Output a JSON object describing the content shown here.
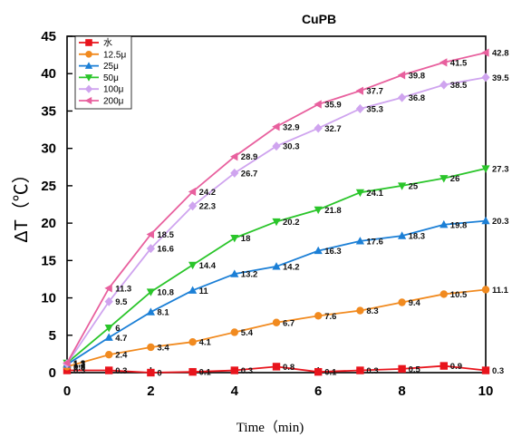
{
  "chart_data": {
    "type": "line",
    "title": "CuPB",
    "xlabel": "Time（min)",
    "ylabel": "ΔT（℃）",
    "xlim": [
      0,
      10
    ],
    "ylim": [
      0,
      45
    ],
    "xticks": [
      "0",
      "2",
      "4",
      "6",
      "8",
      "10"
    ],
    "yticks": [
      "0",
      "5",
      "10",
      "15",
      "20",
      "25",
      "30",
      "35",
      "40",
      "45"
    ],
    "x": [
      0,
      1,
      2,
      3,
      4,
      5,
      6,
      7,
      8,
      9,
      10
    ],
    "legend_position": "top-left",
    "series": [
      {
        "name": "水",
        "color": "#e8141c",
        "marker": "square",
        "values": [
          0.3,
          0.3,
          0,
          0.1,
          0.3,
          0.8,
          0.1,
          0.3,
          0.5,
          0.9,
          0.3
        ],
        "labels": [
          "0.3",
          "0.3",
          "0",
          "0.1",
          "0.3",
          "0.8",
          "0.1",
          "0.3",
          "0.5",
          "0.9",
          "0.3"
        ]
      },
      {
        "name": "12.5μ",
        "color": "#f18a1f",
        "marker": "circle",
        "values": [
          0.8,
          2.4,
          3.4,
          4.1,
          5.4,
          6.7,
          7.6,
          8.3,
          9.4,
          10.5,
          11.1
        ],
        "labels": [
          "0.8",
          "2.4",
          "3.4",
          "4.1",
          "5.4",
          "6.7",
          "7.6",
          "8.3",
          "9.4",
          "10.5",
          "11.1"
        ]
      },
      {
        "name": "25μ",
        "color": "#1b7fd6",
        "marker": "triangle-up",
        "values": [
          1.1,
          4.7,
          8.1,
          11,
          13.2,
          14.2,
          16.3,
          17.6,
          18.3,
          19.8,
          20.3
        ],
        "labels": [
          "1.1",
          "4.7",
          "8.1",
          "11",
          "13.2",
          "14.2",
          "16.3",
          "17.6",
          "18.3",
          "19.8",
          "20.3"
        ]
      },
      {
        "name": "50μ",
        "color": "#2ac52a",
        "marker": "triangle-down",
        "values": [
          1.3,
          6,
          10.8,
          14.4,
          18,
          20.2,
          21.8,
          24.1,
          25,
          26,
          27.3
        ],
        "labels": [
          "1.3",
          "6",
          "10.8",
          "14.4",
          "18",
          "20.2",
          "21.8",
          "24.1",
          "25",
          "26",
          "27.3"
        ]
      },
      {
        "name": "100μ",
        "color": "#cfa4ef",
        "marker": "diamond",
        "values": [
          1.2,
          9.5,
          16.6,
          22.3,
          26.7,
          30.3,
          32.7,
          35.3,
          36.8,
          38.5,
          39.5
        ],
        "labels": [
          "1.2",
          "9.5",
          "16.6",
          "22.3",
          "26.7",
          "30.3",
          "32.7",
          "35.3",
          "36.8",
          "38.5",
          "39.5"
        ]
      },
      {
        "name": "200μ",
        "color": "#e8609e",
        "marker": "triangle-left",
        "values": [
          1.3,
          11.3,
          18.5,
          24.2,
          28.9,
          32.9,
          35.9,
          37.7,
          39.8,
          41.5,
          42.8
        ],
        "labels": [
          "1.3",
          "11.3",
          "18.5",
          "24.2",
          "28.9",
          "32.9",
          "35.9",
          "37.7",
          "39.8",
          "41.5",
          "42.8"
        ]
      }
    ]
  }
}
